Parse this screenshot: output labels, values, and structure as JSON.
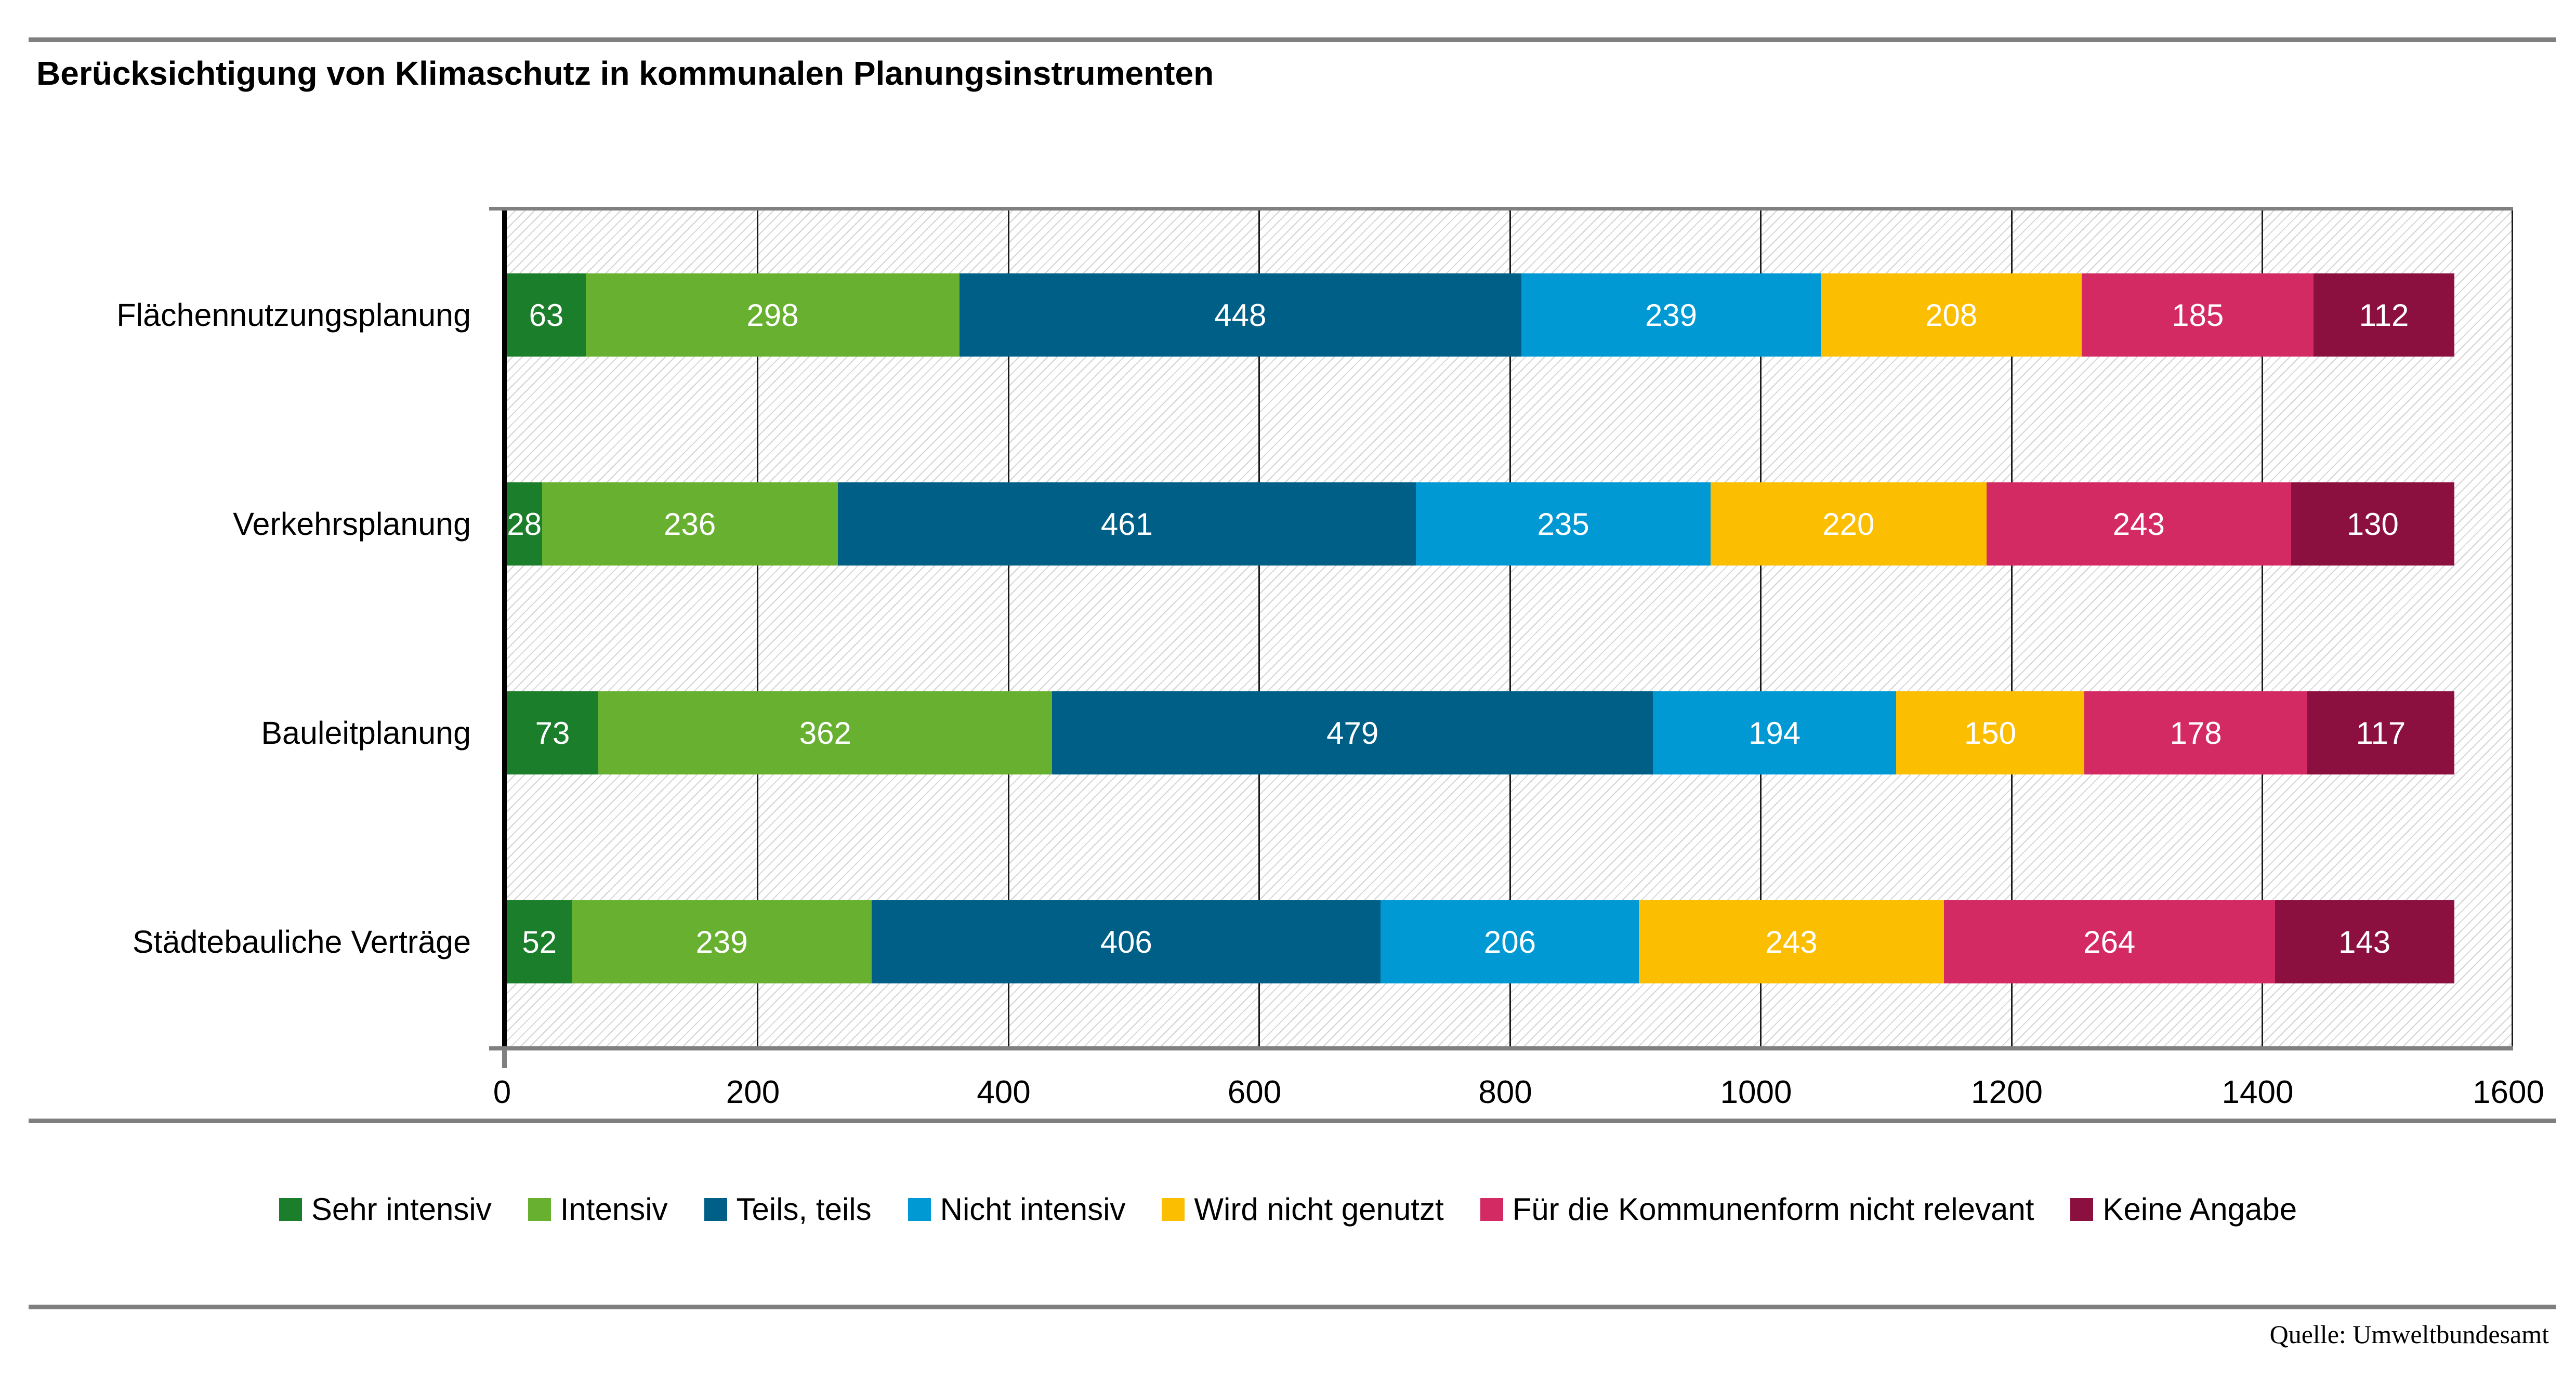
{
  "header": {
    "title": "Berücksichtigung von Klimaschutz in kommunalen Planungsinstrumenten"
  },
  "chart_data": {
    "type": "bar",
    "orientation": "horizontal",
    "stacked": true,
    "title": "Berücksichtigung von Klimaschutz in kommunalen Planungsinstrumenten",
    "categories": [
      "Flächennutzungsplanung",
      "Verkehrsplanung",
      "Bauleitplanung",
      "Städtebauliche Verträge"
    ],
    "series": [
      {
        "name": "Sehr intensiv",
        "color": "#1B7E2A",
        "values": [
          63,
          28,
          73,
          52
        ]
      },
      {
        "name": "Intensiv",
        "color": "#68B030",
        "values": [
          298,
          236,
          362,
          239
        ]
      },
      {
        "name": "Teils, teils",
        "color": "#005F87",
        "values": [
          448,
          461,
          479,
          406
        ]
      },
      {
        "name": "Nicht intensiv",
        "color": "#0099D4",
        "values": [
          239,
          235,
          194,
          206
        ]
      },
      {
        "name": "Wird nicht genutzt",
        "color": "#FCBE00",
        "values": [
          208,
          220,
          150,
          243
        ]
      },
      {
        "name": "Für die Kommunenform nicht relevant",
        "color": "#D42A63",
        "values": [
          185,
          243,
          178,
          264
        ]
      },
      {
        "name": "Keine Angabe",
        "color": "#8B1040",
        "values": [
          112,
          130,
          117,
          143
        ]
      }
    ],
    "xlim": [
      0,
      1600
    ],
    "x_tick_labels": [
      "0",
      "200",
      "400",
      "600",
      "800",
      "1000",
      "1200",
      "1400",
      "1600"
    ],
    "xlabel": "",
    "ylabel": "",
    "grid": "vertical",
    "grid_color": "#1A1A1A",
    "frame_color": "#7F7F7F",
    "plot_hatch": "diagonal",
    "value_label_color": "#FFFFFF",
    "legend_position": "bottom"
  },
  "footer": {
    "source": "Quelle: Umweltbundesamt"
  }
}
